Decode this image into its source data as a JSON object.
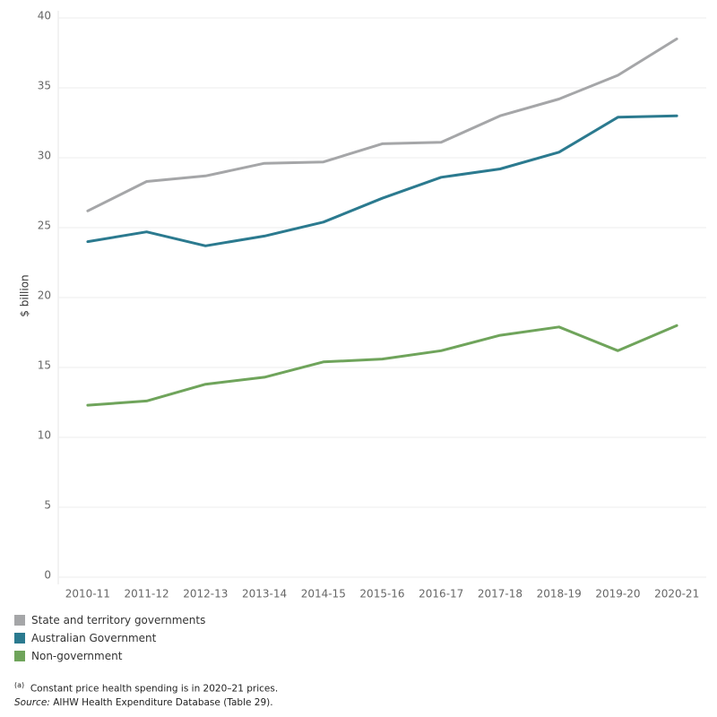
{
  "chart_data": {
    "type": "line",
    "y_label": "$ billion",
    "categories": [
      "2010-11",
      "2011-12",
      "2012-13",
      "2013-14",
      "2014-15",
      "2015-16",
      "2016-17",
      "2017-18",
      "2018-19",
      "2019-20",
      "2020-21"
    ],
    "series": [
      {
        "name": "State and territory governments",
        "color": "#a5a6a8",
        "values": [
          26.2,
          28.3,
          28.7,
          29.6,
          29.7,
          31.0,
          31.1,
          33.0,
          34.2,
          35.9,
          38.5
        ]
      },
      {
        "name": "Australian Government",
        "color": "#2b7a8f",
        "values": [
          24.0,
          24.7,
          23.7,
          24.4,
          25.4,
          27.1,
          28.6,
          29.2,
          30.4,
          32.9,
          33.0
        ]
      },
      {
        "name": "Non-government",
        "color": "#6fa45b",
        "values": [
          12.3,
          12.6,
          13.8,
          14.3,
          15.4,
          15.6,
          16.2,
          17.3,
          17.9,
          16.2,
          18.0
        ]
      }
    ],
    "ylim": [
      0,
      40
    ],
    "yticks": [
      0,
      5,
      10,
      15,
      20,
      25,
      30,
      35,
      40
    ],
    "grid": true
  },
  "footnote": {
    "marker": "(a)",
    "text": "Constant price health spending is in 2020–21 prices."
  },
  "source": {
    "label": "Source:",
    "text": "AIHW Health Expenditure Database (Table 29)."
  }
}
